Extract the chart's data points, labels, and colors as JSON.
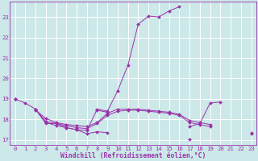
{
  "xlabel": "Windchill (Refroidissement éolien,°C)",
  "x_values": [
    0,
    1,
    2,
    3,
    4,
    5,
    6,
    7,
    8,
    9,
    10,
    11,
    12,
    13,
    14,
    15,
    16,
    17,
    18,
    19,
    20,
    21,
    22,
    23
  ],
  "lines": [
    {
      "y": [
        19.0,
        18.8,
        18.5,
        17.8,
        17.8,
        17.6,
        17.5,
        17.45,
        18.5,
        18.4,
        19.4,
        20.65,
        22.65,
        23.05,
        23.0,
        23.3,
        23.5,
        null,
        null,
        null,
        null,
        null,
        null,
        null
      ],
      "color": "#9932aa"
    },
    {
      "y": [
        19.0,
        null,
        18.5,
        17.85,
        17.7,
        17.6,
        17.5,
        17.3,
        17.4,
        17.35,
        null,
        null,
        null,
        null,
        null,
        null,
        null,
        17.05,
        null,
        null,
        null,
        null,
        null,
        null
      ],
      "color": "#9932aa"
    },
    {
      "y": [
        19.0,
        null,
        18.5,
        17.9,
        17.8,
        17.7,
        17.6,
        17.55,
        17.8,
        18.2,
        18.4,
        18.45,
        18.45,
        18.4,
        18.35,
        18.3,
        18.2,
        17.85,
        17.75,
        17.65,
        null,
        null,
        null,
        17.3
      ],
      "color": "#9932aa"
    },
    {
      "y": [
        19.0,
        null,
        18.45,
        18.05,
        17.85,
        17.75,
        17.7,
        17.65,
        17.85,
        18.3,
        18.5,
        18.5,
        18.5,
        18.45,
        18.4,
        18.35,
        18.25,
        17.95,
        17.85,
        17.75,
        null,
        null,
        null,
        17.35
      ],
      "color": "#9932aa"
    },
    {
      "y": [
        null,
        null,
        null,
        null,
        null,
        null,
        null,
        null,
        18.45,
        18.35,
        null,
        null,
        null,
        null,
        null,
        null,
        null,
        17.65,
        17.8,
        18.8,
        18.85,
        null,
        null,
        null
      ],
      "color": "#9932aa"
    }
  ],
  "ylim_min": 16.75,
  "ylim_max": 23.75,
  "yticks": [
    17,
    18,
    19,
    20,
    21,
    22,
    23
  ],
  "xlim_min": -0.5,
  "xlim_max": 23.5,
  "xticks": [
    0,
    1,
    2,
    3,
    4,
    5,
    6,
    7,
    8,
    9,
    10,
    11,
    12,
    13,
    14,
    15,
    16,
    17,
    18,
    19,
    20,
    21,
    22,
    23
  ],
  "bg_color": "#cce8e8",
  "grid_color": "#ffffff",
  "line_color": "#9932aa",
  "marker": "D",
  "markersize": 2.0,
  "linewidth": 0.7,
  "tick_fontsize": 5.2,
  "label_fontsize": 5.8,
  "spine_color": "#9932aa"
}
